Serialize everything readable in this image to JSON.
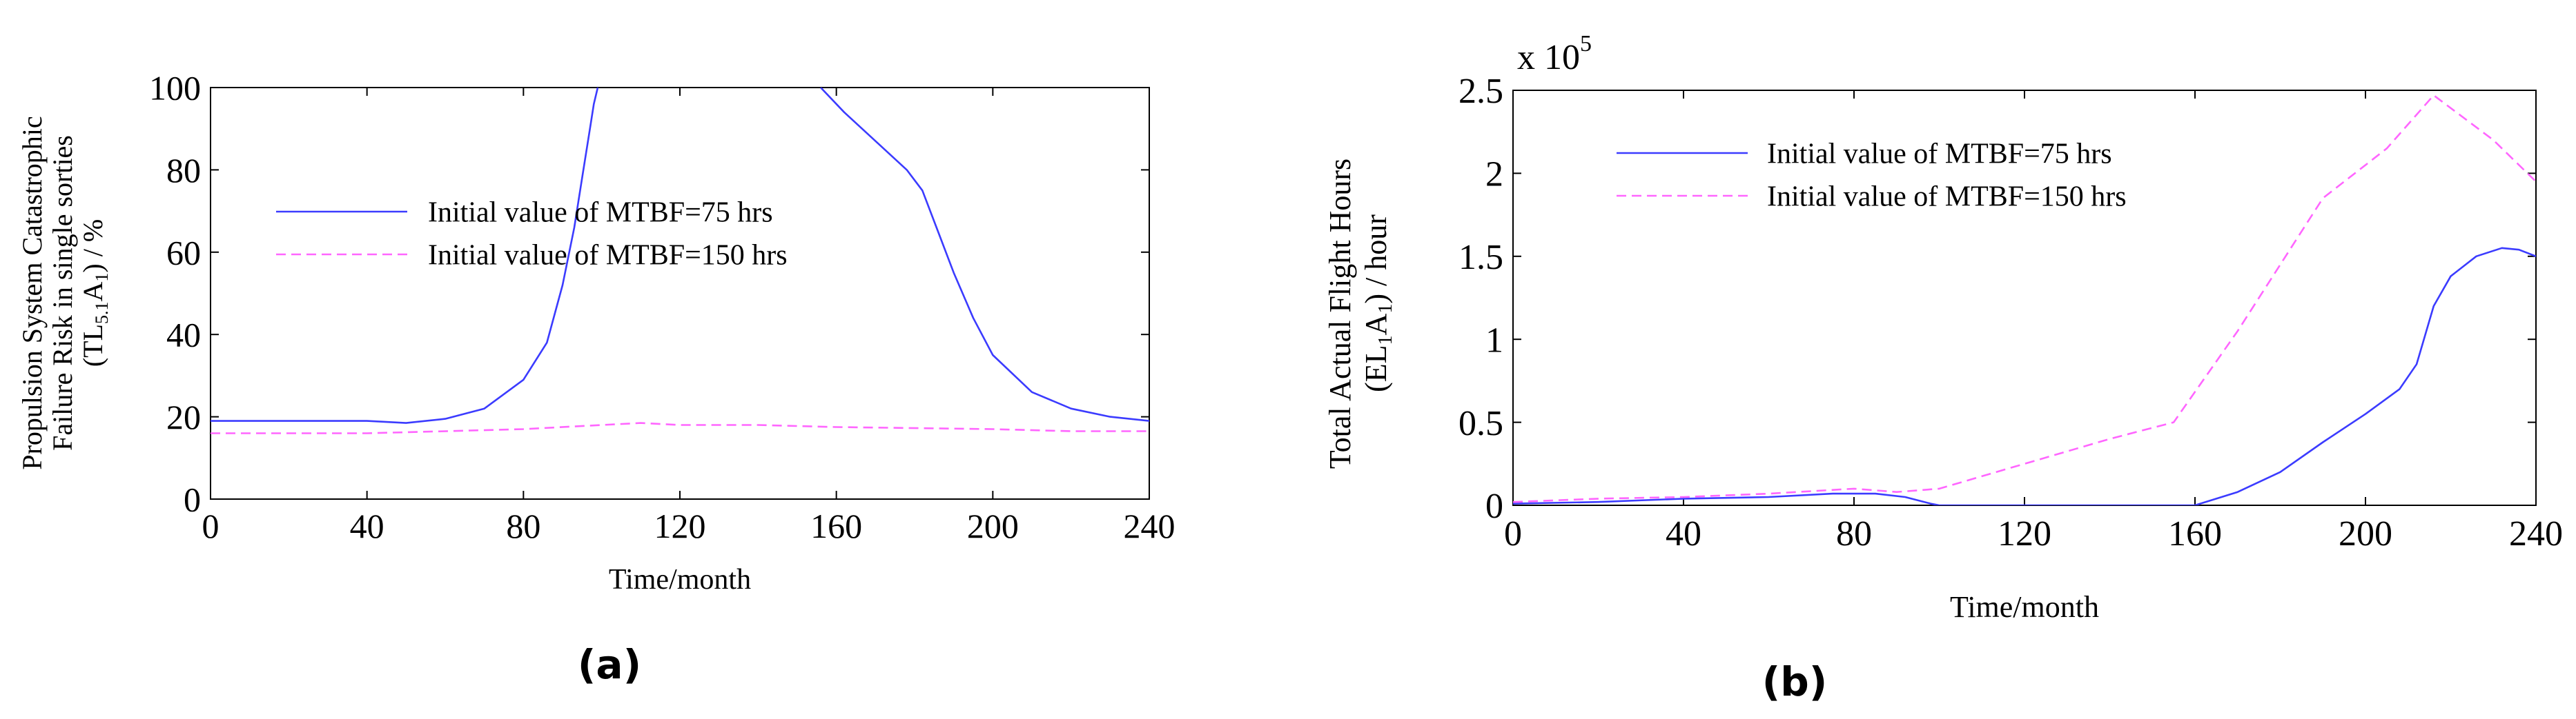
{
  "panels": [
    {
      "caption": "(a)"
    },
    {
      "caption": "(b)"
    }
  ],
  "colors": {
    "mtbf75": "#3b3bff",
    "mtbf150": "#ff66ff",
    "axis": "#000000"
  },
  "chart_data": [
    {
      "type": "line",
      "xlabel": "Time/month",
      "ylabel_lines": [
        "Propulsion System Catastrophic",
        "Failure Risk in single sorties",
        "(TL5.1A1)  / %"
      ],
      "ylabel_parts": {
        "line3_prefix": "(TL",
        "line3_sub": "5.1",
        "line3_mid": "A",
        "line3_sub2": "1",
        "line3_suffix": ")  / %"
      },
      "xlim": [
        0,
        240
      ],
      "ylim": [
        0,
        100
      ],
      "xticks": [
        0,
        40,
        80,
        120,
        160,
        200,
        240
      ],
      "yticks": [
        0,
        20,
        40,
        60,
        80,
        100
      ],
      "legend_position": "upper-left",
      "series": [
        {
          "name": "Initial value  of MTBF=75 hrs",
          "style": "solid",
          "x": [
            0,
            20,
            40,
            50,
            60,
            70,
            80,
            86,
            90,
            93,
            95,
            97,
            98,
            99
          ],
          "y": [
            19,
            19,
            19,
            18.5,
            19.5,
            22,
            29,
            38,
            52,
            66,
            78,
            90,
            96,
            100
          ],
          "x2": [
            156,
            162,
            170,
            178,
            182,
            186,
            190,
            195,
            200,
            210,
            220,
            230,
            240
          ],
          "y2": [
            100,
            94,
            87,
            80,
            75,
            65,
            55,
            44,
            35,
            26,
            22,
            20,
            19
          ]
        },
        {
          "name": "Initial value  of MTBF=150 hrs",
          "style": "dashed",
          "x": [
            0,
            40,
            80,
            100,
            110,
            120,
            140,
            160,
            200,
            220,
            240
          ],
          "y": [
            16,
            16,
            17,
            18,
            18.5,
            18,
            18,
            17.5,
            17,
            16.5,
            16.5
          ]
        }
      ]
    },
    {
      "type": "line",
      "xlabel": "Time/month",
      "ylabel_lines": [
        "Total Actual Flight Hours",
        "(EL1A1)  / hour"
      ],
      "ylabel_parts": {
        "line2_prefix": "(EL",
        "line2_sub": "1",
        "line2_mid": "A",
        "line2_sub2": "1",
        "line2_suffix": ")  / hour"
      },
      "scale_note": {
        "base": "x 10",
        "exp": "5"
      },
      "xlim": [
        0,
        240
      ],
      "ylim": [
        0,
        2.5
      ],
      "xticks": [
        0,
        40,
        80,
        120,
        160,
        200,
        240
      ],
      "yticks": [
        0,
        0.5,
        1,
        1.5,
        2,
        2.5
      ],
      "ytick_labels": [
        "0",
        "0.5",
        "1",
        "1.5",
        "2",
        "2.5"
      ],
      "legend_position": "upper-left",
      "series": [
        {
          "name": "Initial value  of MTBF=75 hrs",
          "style": "solid",
          "x": [
            0,
            20,
            40,
            60,
            75,
            85,
            92,
            98,
            100,
            120,
            140,
            160,
            170,
            180,
            190,
            200,
            208,
            212,
            216,
            220,
            226,
            232,
            236,
            240
          ],
          "y": [
            0.01,
            0.02,
            0.04,
            0.05,
            0.07,
            0.07,
            0.05,
            0.01,
            0,
            0,
            0,
            0,
            0.08,
            0.2,
            0.38,
            0.55,
            0.7,
            0.85,
            1.2,
            1.38,
            1.5,
            1.55,
            1.54,
            1.5
          ]
        },
        {
          "name": "Initial value  of MTBF=150 hrs",
          "style": "dashed",
          "x": [
            0,
            20,
            40,
            60,
            80,
            90,
            100,
            120,
            140,
            155,
            170,
            190,
            205,
            216,
            230,
            240
          ],
          "y": [
            0.02,
            0.04,
            0.05,
            0.07,
            0.1,
            0.08,
            0.1,
            0.25,
            0.4,
            0.5,
            1.05,
            1.85,
            2.15,
            2.47,
            2.2,
            1.95
          ]
        }
      ]
    }
  ]
}
